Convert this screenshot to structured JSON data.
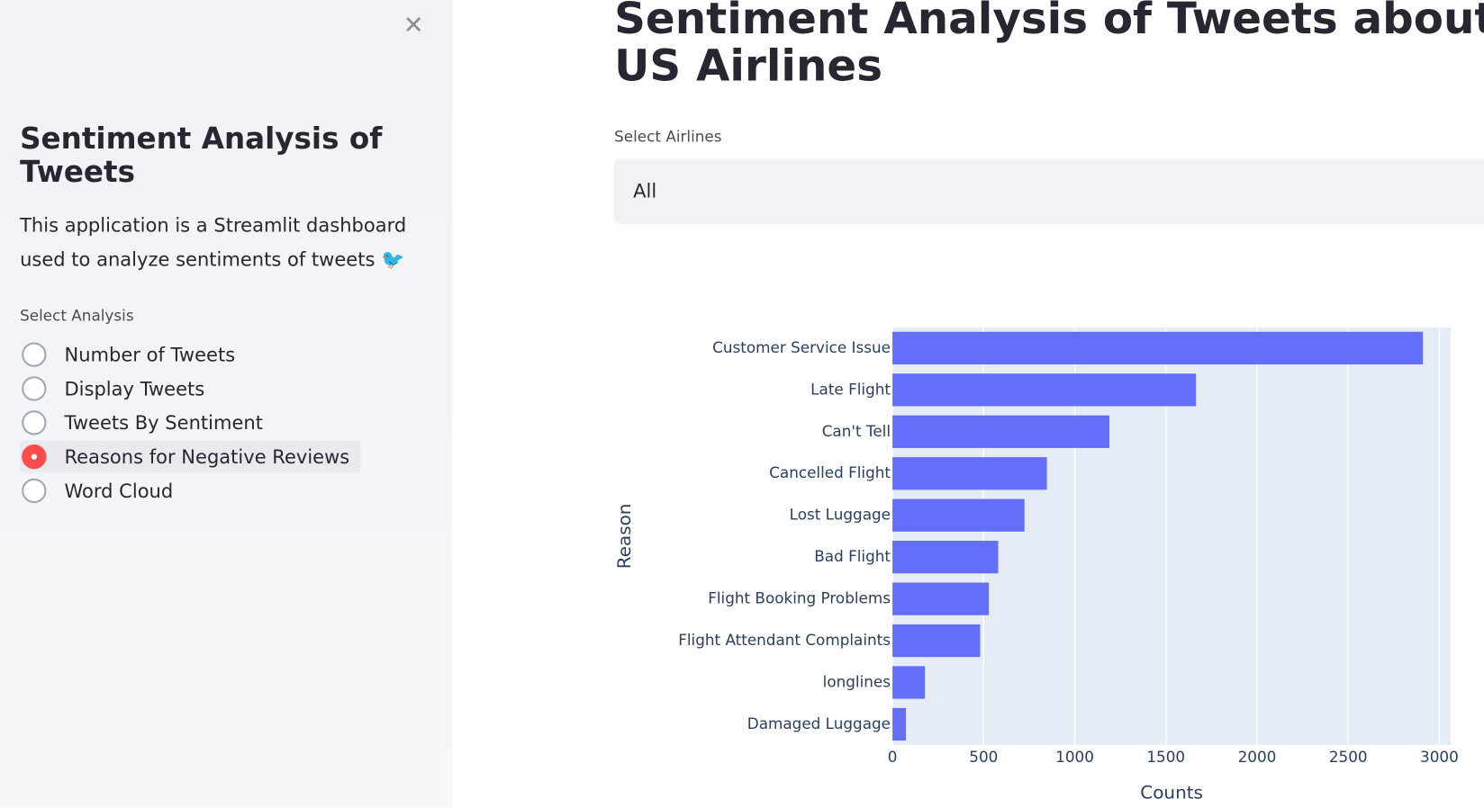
{
  "sidebar": {
    "title": "Sentiment Analysis of Tweets",
    "description": "This application is a Streamlit dashboard used to analyze sentiments of tweets 🐦",
    "radio": {
      "label": "Select Analysis",
      "options": [
        "Number of Tweets",
        "Display Tweets",
        "Tweets By Sentiment",
        "Reasons for Negative Reviews",
        "Word Cloud"
      ],
      "selected": 3
    }
  },
  "main": {
    "title": "Sentiment Analysis of Tweets about US Airlines",
    "select": {
      "label": "Select Airlines",
      "value": "All"
    }
  },
  "chart_data": {
    "type": "hbar",
    "categories": [
      "Customer Service Issue",
      "Late Flight",
      "Can't Tell",
      "Cancelled Flight",
      "Lost Luggage",
      "Bad Flight",
      "Flight Booking Problems",
      "Flight Attendant Complaints",
      "longlines",
      "Damaged Luggage"
    ],
    "values": [
      2910,
      1665,
      1190,
      847,
      724,
      580,
      529,
      481,
      178,
      74
    ],
    "color": "#636efa",
    "x_label": "Counts",
    "y_label": "Reason",
    "xlim": [
      0,
      3063
    ],
    "xticks": [
      0,
      500,
      1000,
      1500,
      2000,
      2500,
      3000
    ],
    "grid": true
  }
}
